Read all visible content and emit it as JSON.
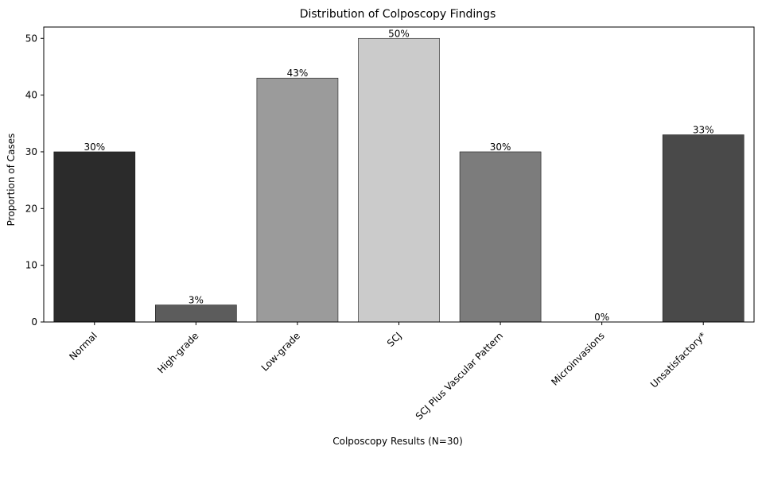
{
  "chart_data": {
    "type": "bar",
    "title": "Distribution of Colposcopy Findings",
    "xlabel": "Colposcopy Results (N=30)",
    "ylabel": "Proportion of Cases",
    "categories": [
      "Normal",
      "High-grade",
      "Low-grade",
      "SCJ",
      "SCJ Plus Vascular Pattern",
      "Microinvasions",
      "Unsatisfactory*"
    ],
    "values": [
      30,
      3,
      43,
      50,
      30,
      0,
      33
    ],
    "data_labels": [
      "30%",
      "3%",
      "43%",
      "50%",
      "30%",
      "0%",
      "33%"
    ],
    "colors": [
      "#2b2b2b",
      "#5c5c5c",
      "#9b9b9b",
      "#cbcbcb",
      "#7c7c7c",
      "#3a3a3a",
      "#494949"
    ],
    "ylim": [
      0,
      52
    ],
    "yticks": [
      0,
      10,
      20,
      30,
      40,
      50
    ],
    "ytick_labels": [
      "0",
      "10",
      "20",
      "30",
      "40",
      "50"
    ],
    "grid": false,
    "legend": "none"
  }
}
